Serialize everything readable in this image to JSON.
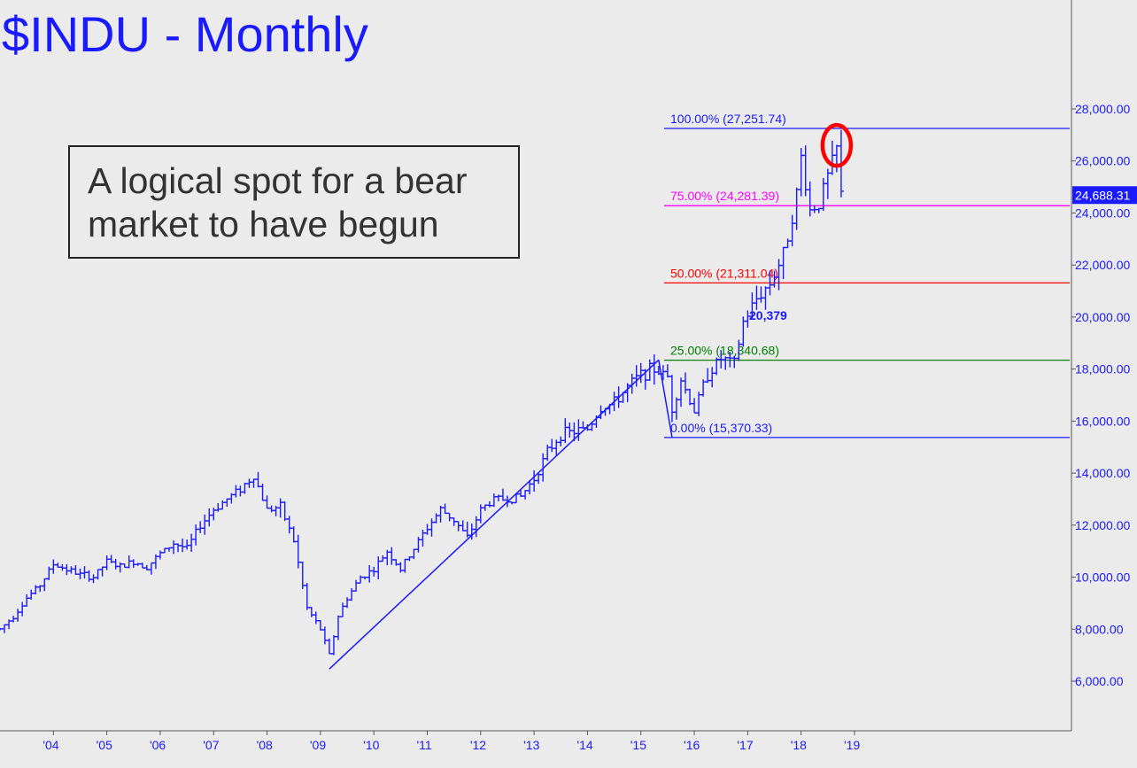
{
  "chart_data": {
    "type": "ohlc",
    "title": "$INDU - Monthly",
    "annotation": "A logical spot for a bear market to have begun",
    "y_axis": {
      "ylim": [
        4500,
        29500
      ],
      "ticks": [
        "6,000.00",
        "8,000.00",
        "10,000.00",
        "12,000.00",
        "14,000.00",
        "16,000.00",
        "18,000.00",
        "20,000.00",
        "22,000.00",
        "24,000.00",
        "26,000.00",
        "28,000.00"
      ],
      "position": "right"
    },
    "x_axis": {
      "ticks": [
        "'04",
        "'05",
        "'06",
        "'07",
        "'08",
        "'09",
        "'10",
        "'11",
        "'12",
        "'13",
        "'14",
        "'15",
        "'16",
        "'17",
        "'18",
        "'19"
      ]
    },
    "last_price": "24,688.31",
    "close_series": [
      {
        "date": "2003-01",
        "value": 8000
      },
      {
        "date": "2003-04",
        "value": 8500
      },
      {
        "date": "2003-07",
        "value": 9200
      },
      {
        "date": "2003-10",
        "value": 9700
      },
      {
        "date": "2004-01",
        "value": 10500
      },
      {
        "date": "2004-04",
        "value": 10300
      },
      {
        "date": "2004-07",
        "value": 10100
      },
      {
        "date": "2004-10",
        "value": 10000
      },
      {
        "date": "2005-01",
        "value": 10600
      },
      {
        "date": "2005-04",
        "value": 10400
      },
      {
        "date": "2005-07",
        "value": 10600
      },
      {
        "date": "2005-10",
        "value": 10400
      },
      {
        "date": "2006-01",
        "value": 10900
      },
      {
        "date": "2006-04",
        "value": 11300
      },
      {
        "date": "2006-07",
        "value": 11100
      },
      {
        "date": "2006-10",
        "value": 12000
      },
      {
        "date": "2007-01",
        "value": 12600
      },
      {
        "date": "2007-04",
        "value": 13000
      },
      {
        "date": "2007-07",
        "value": 13400
      },
      {
        "date": "2007-10",
        "value": 13900
      },
      {
        "date": "2008-01",
        "value": 12600
      },
      {
        "date": "2008-04",
        "value": 12700
      },
      {
        "date": "2008-07",
        "value": 11400
      },
      {
        "date": "2008-10",
        "value": 8800
      },
      {
        "date": "2009-01",
        "value": 8000
      },
      {
        "date": "2009-03",
        "value": 7000
      },
      {
        "date": "2009-05",
        "value": 8500
      },
      {
        "date": "2009-07",
        "value": 9200
      },
      {
        "date": "2009-10",
        "value": 10000
      },
      {
        "date": "2010-01",
        "value": 10300
      },
      {
        "date": "2010-04",
        "value": 11000
      },
      {
        "date": "2010-07",
        "value": 10300
      },
      {
        "date": "2010-10",
        "value": 11100
      },
      {
        "date": "2011-01",
        "value": 11900
      },
      {
        "date": "2011-04",
        "value": 12600
      },
      {
        "date": "2011-07",
        "value": 12200
      },
      {
        "date": "2011-10",
        "value": 11500
      },
      {
        "date": "2012-01",
        "value": 12600
      },
      {
        "date": "2012-04",
        "value": 13000
      },
      {
        "date": "2012-07",
        "value": 13000
      },
      {
        "date": "2012-10",
        "value": 13100
      },
      {
        "date": "2013-01",
        "value": 13800
      },
      {
        "date": "2013-04",
        "value": 14800
      },
      {
        "date": "2013-07",
        "value": 15500
      },
      {
        "date": "2013-10",
        "value": 15600
      },
      {
        "date": "2014-01",
        "value": 15700
      },
      {
        "date": "2014-04",
        "value": 16500
      },
      {
        "date": "2014-07",
        "value": 16700
      },
      {
        "date": "2014-10",
        "value": 17300
      },
      {
        "date": "2015-01",
        "value": 17800
      },
      {
        "date": "2015-04",
        "value": 18000
      },
      {
        "date": "2015-07",
        "value": 17700
      },
      {
        "date": "2015-08",
        "value": 16500
      },
      {
        "date": "2015-10",
        "value": 17600
      },
      {
        "date": "2016-01",
        "value": 16400
      },
      {
        "date": "2016-04",
        "value": 17800
      },
      {
        "date": "2016-07",
        "value": 18400
      },
      {
        "date": "2016-10",
        "value": 18200
      },
      {
        "date": "2016-12",
        "value": 19800
      },
      {
        "date": "2017-03",
        "value": 20700
      },
      {
        "date": "2017-06",
        "value": 21300
      },
      {
        "date": "2017-09",
        "value": 22400
      },
      {
        "date": "2017-12",
        "value": 24700
      },
      {
        "date": "2018-01",
        "value": 26150
      },
      {
        "date": "2018-03",
        "value": 24100
      },
      {
        "date": "2018-05",
        "value": 24400
      },
      {
        "date": "2018-07",
        "value": 25400
      },
      {
        "date": "2018-09",
        "value": 26450
      },
      {
        "date": "2018-10",
        "value": 24688
      }
    ],
    "trendlines": [
      {
        "from": {
          "date": "2009-03",
          "value": 6470
        },
        "to": {
          "date": "2015-05",
          "value": 18350
        }
      },
      {
        "from": {
          "date": "2015-05",
          "value": 18350
        },
        "to": {
          "date": "2015-08",
          "value": 15370
        }
      }
    ],
    "fib_levels": [
      {
        "label": "100.00% (27,251.74)",
        "value": 27251.74,
        "color": "#1a1aff"
      },
      {
        "label": "75.00% (24,281.39)",
        "value": 24281.39,
        "color": "#ff00ff"
      },
      {
        "label": "50.00% (21,311.04)",
        "value": 21311.04,
        "color": "#ff0000"
      },
      {
        "label": "25.00% (18,340.68)",
        "value": 18340.68,
        "color": "#008000"
      },
      {
        "label": "0.00% (15,370.33)",
        "value": 15370.33,
        "color": "#1a1aff"
      }
    ],
    "point_label": "20,379",
    "highlight": {
      "shape": "ellipse",
      "color": "#ff0000",
      "date": "2018-09",
      "value": 26600
    }
  }
}
